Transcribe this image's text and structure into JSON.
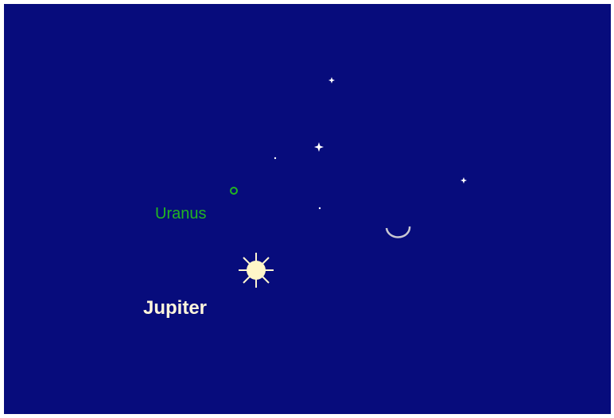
{
  "labels": {
    "uranus": "Uranus",
    "jupiter": "Jupiter"
  }
}
